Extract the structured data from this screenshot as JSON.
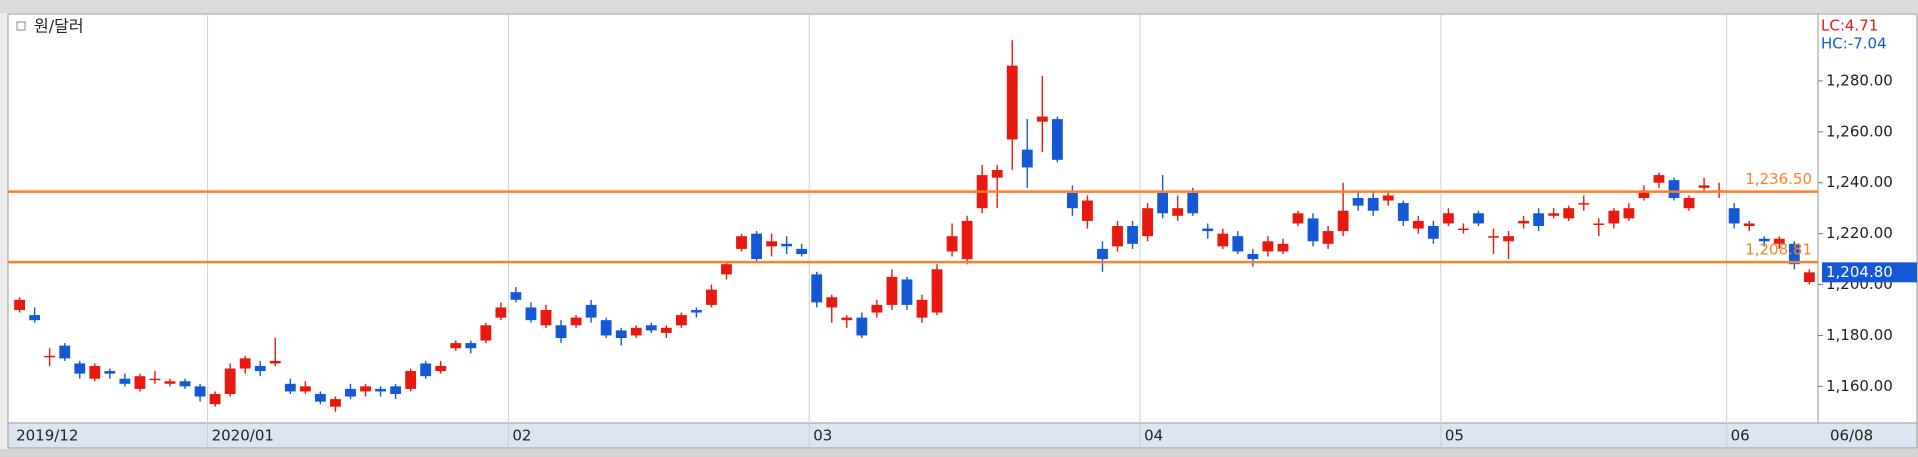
{
  "chart_data": {
    "type": "candlestick",
    "title": "원/달러",
    "lc_label": "LC:4.71",
    "hc_label": "HC:-7.04",
    "last_date_label": "06/08",
    "last_close_label": "1,204.80",
    "up_color": "#e8190e",
    "down_color": "#1558d6",
    "line_color": "#ff7f27",
    "categories": [
      "2019/12",
      null,
      null,
      null,
      null,
      null,
      null,
      null,
      null,
      null,
      null,
      null,
      null,
      "2020/01",
      null,
      null,
      null,
      null,
      null,
      null,
      null,
      null,
      null,
      null,
      null,
      null,
      null,
      null,
      null,
      null,
      null,
      null,
      null,
      "02",
      null,
      null,
      null,
      null,
      null,
      null,
      null,
      null,
      null,
      null,
      null,
      null,
      null,
      null,
      null,
      null,
      null,
      null,
      null,
      "03",
      null,
      null,
      null,
      null,
      null,
      null,
      null,
      null,
      null,
      null,
      null,
      null,
      null,
      null,
      null,
      null,
      null,
      null,
      null,
      null,
      null,
      "04",
      null,
      null,
      null,
      null,
      null,
      null,
      null,
      null,
      null,
      null,
      null,
      null,
      null,
      null,
      null,
      null,
      null,
      null,
      null,
      "05",
      null,
      null,
      null,
      null,
      null,
      null,
      null,
      null,
      null,
      null,
      null,
      null,
      null,
      null,
      null,
      null,
      null,
      null,
      "06",
      null,
      null,
      null,
      null,
      null
    ],
    "open": [
      1190,
      1188,
      1172,
      1176,
      1169,
      1163,
      1166,
      1163,
      1159,
      1163,
      1161,
      1162,
      1160,
      1153,
      1157,
      1167,
      1168,
      1169,
      1161,
      1158,
      1157,
      1152,
      1159,
      1158,
      1159,
      1160,
      1159,
      1169,
      1166,
      1175,
      1177,
      1178,
      1187,
      1197,
      1191,
      1184,
      1184,
      1184,
      1192,
      1186,
      1182,
      1180,
      1184,
      1181,
      1184,
      1190,
      1192,
      1204,
      1214,
      1220,
      1215,
      1216,
      1214,
      1204,
      1191,
      1186,
      1187,
      1189,
      1192,
      1202,
      1187,
      1189,
      1213,
      1210,
      1230,
      1242,
      1257,
      1253,
      1264,
      1265,
      1236,
      1225,
      1214,
      1215,
      1223,
      1219,
      1236,
      1227,
      1236,
      1222,
      1215,
      1219,
      1212,
      1213,
      1213,
      1224,
      1226,
      1216,
      1221,
      1234,
      1234,
      1233,
      1232,
      1222,
      1223,
      1224,
      1222,
      1228,
      1219,
      1217,
      1224,
      1228,
      1227,
      1226,
      1232,
      1224,
      1224,
      1226,
      1234,
      1240,
      1241,
      1230,
      1238,
      1237,
      1230,
      1223,
      1218,
      1216,
      1216,
      1201
    ],
    "high": [
      1195,
      1191,
      1175,
      1177,
      1170,
      1169,
      1167,
      1165,
      1165,
      1166,
      1163,
      1163,
      1161,
      1158,
      1169,
      1172,
      1170,
      1179,
      1163,
      1162,
      1158,
      1156,
      1161,
      1161,
      1160,
      1161,
      1167,
      1170,
      1170,
      1178,
      1178,
      1185,
      1193,
      1199,
      1193,
      1192,
      1186,
      1188,
      1194,
      1187,
      1183,
      1184,
      1185,
      1184,
      1189,
      1191,
      1200,
      1209,
      1220,
      1221,
      1220,
      1219,
      1216,
      1205,
      1196,
      1188,
      1189,
      1194,
      1206,
      1203,
      1196,
      1208,
      1224,
      1227,
      1247,
      1247,
      1296,
      1265,
      1282,
      1266,
      1239,
      1235,
      1217,
      1225,
      1225,
      1232,
      1243,
      1235,
      1238,
      1224,
      1222,
      1221,
      1214,
      1219,
      1218,
      1229,
      1228,
      1223,
      1240,
      1237,
      1237,
      1237,
      1233,
      1227,
      1225,
      1230,
      1224,
      1229,
      1222,
      1221,
      1227,
      1230,
      1230,
      1231,
      1235,
      1226,
      1230,
      1232,
      1239,
      1244,
      1242,
      1235,
      1242,
      1240,
      1232,
      1225,
      1219,
      1219,
      1217,
      1206
    ],
    "low": [
      1189,
      1185,
      1168,
      1170,
      1163,
      1162,
      1163,
      1160,
      1158,
      1161,
      1160,
      1159,
      1154,
      1152,
      1156,
      1165,
      1164,
      1168,
      1157,
      1157,
      1153,
      1150,
      1155,
      1156,
      1156,
      1155,
      1158,
      1163,
      1165,
      1174,
      1173,
      1177,
      1186,
      1193,
      1185,
      1183,
      1177,
      1183,
      1185,
      1179,
      1176,
      1179,
      1181,
      1179,
      1183,
      1187,
      1191,
      1202,
      1213,
      1209,
      1211,
      1212,
      1211,
      1191,
      1185,
      1183,
      1179,
      1187,
      1190,
      1190,
      1185,
      1188,
      1211,
      1208,
      1228,
      1230,
      1245,
      1238,
      1252,
      1248,
      1227,
      1222,
      1205,
      1213,
      1214,
      1217,
      1226,
      1225,
      1227,
      1218,
      1214,
      1212,
      1207,
      1211,
      1212,
      1223,
      1215,
      1214,
      1219,
      1229,
      1227,
      1231,
      1223,
      1220,
      1216,
      1223,
      1220,
      1223,
      1212,
      1210,
      1222,
      1221,
      1226,
      1225,
      1229,
      1219,
      1222,
      1225,
      1233,
      1238,
      1233,
      1229,
      1236,
      1234,
      1222,
      1221,
      1215,
      1214,
      1206,
      1200
    ],
    "close": [
      1194,
      1186,
      1172,
      1171,
      1165,
      1168,
      1165,
      1161,
      1164,
      1163,
      1162,
      1160,
      1156,
      1157,
      1167,
      1171,
      1166,
      1170,
      1158,
      1160,
      1154,
      1155,
      1156,
      1160,
      1158,
      1157,
      1166,
      1164,
      1168,
      1177,
      1175,
      1184,
      1191,
      1194,
      1186,
      1190,
      1179,
      1187,
      1187,
      1180,
      1179,
      1183,
      1182,
      1183,
      1188,
      1189,
      1198,
      1208,
      1219,
      1210,
      1217,
      1215,
      1212,
      1193,
      1195,
      1187,
      1180,
      1192,
      1203,
      1192,
      1194,
      1206,
      1219,
      1225,
      1243,
      1245,
      1286,
      1246,
      1266,
      1249,
      1230,
      1233,
      1210,
      1223,
      1216,
      1230,
      1228,
      1230,
      1228,
      1221,
      1220,
      1213,
      1210,
      1217,
      1216,
      1228,
      1217,
      1221,
      1229,
      1231,
      1229,
      1235,
      1225,
      1225,
      1218,
      1228,
      1222,
      1224,
      1219,
      1219,
      1225,
      1223,
      1228,
      1230,
      1232,
      1224,
      1229,
      1230,
      1237,
      1243,
      1234,
      1234,
      1239,
      1237,
      1224,
      1224,
      1217,
      1218,
      1208,
      1204.8
    ],
    "hlines": [
      {
        "value": 1236.5,
        "label": "1,236.50"
      },
      {
        "value": 1208.81,
        "label": "1,208.81"
      }
    ],
    "ylim": [
      1145.6,
      1305.9
    ],
    "yticks": [
      {
        "value": 1160,
        "label": "1,160.00"
      },
      {
        "value": 1180,
        "label": "1,180.00"
      },
      {
        "value": 1200,
        "label": "1,200.00"
      },
      {
        "value": 1220,
        "label": "1,220.00"
      },
      {
        "value": 1240,
        "label": "1,240.00"
      },
      {
        "value": 1260,
        "label": "1,260.00"
      },
      {
        "value": 1280,
        "label": "1,280.00"
      }
    ]
  }
}
